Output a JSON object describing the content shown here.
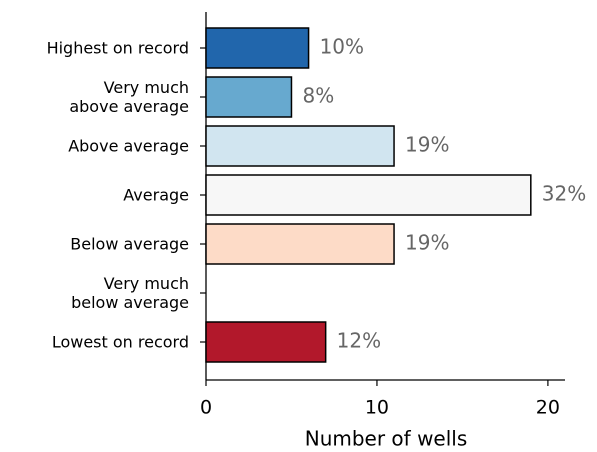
{
  "chart_data": {
    "type": "barh",
    "categories": [
      "Highest on record",
      "Very much\nabove average",
      "Above average",
      "Average",
      "Below average",
      "Very much\nbelow average",
      "Lowest on record"
    ],
    "values": [
      6,
      5,
      11,
      19,
      11,
      0,
      7
    ],
    "value_labels": [
      "10%",
      "8%",
      "19%",
      "32%",
      "19%",
      null,
      "12%"
    ],
    "colors": [
      "#2166ac",
      "#67a9cf",
      "#d1e5f0",
      "#f7f7f7",
      "#fddbc7",
      "#ef8a62",
      "#b2182b"
    ],
    "xlabel": "Number of wells",
    "xlim": [
      0,
      21
    ],
    "xticks": [
      0,
      10,
      20
    ]
  }
}
